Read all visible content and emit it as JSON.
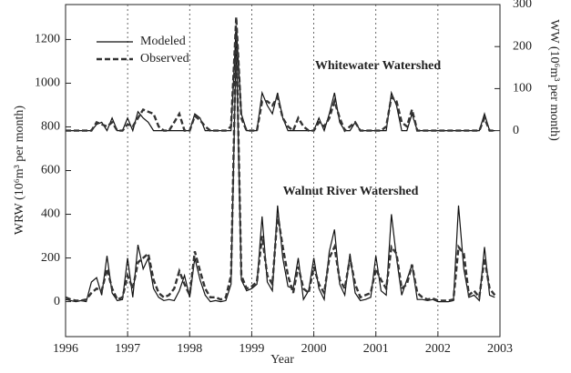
{
  "chart_data": {
    "type": "line",
    "x_label": "Year",
    "y_label": "WRW (10⁶m³ per month)",
    "y2_label": "WW (10⁶m³ per month)",
    "annotations": [
      "Whitewater Watershed",
      "Walnut River Watershed"
    ],
    "x": [
      1996,
      1996.083,
      1996.167,
      1996.25,
      1996.333,
      1996.417,
      1996.5,
      1996.583,
      1996.667,
      1996.75,
      1996.833,
      1996.917,
      1997,
      1997.083,
      1997.167,
      1997.25,
      1997.333,
      1997.417,
      1997.5,
      1997.583,
      1997.667,
      1997.75,
      1997.833,
      1997.917,
      1998,
      1998.083,
      1998.167,
      1998.25,
      1998.333,
      1998.417,
      1998.5,
      1998.583,
      1998.667,
      1998.75,
      1998.833,
      1998.917,
      1999,
      1999.083,
      1999.167,
      1999.25,
      1999.333,
      1999.417,
      1999.5,
      1999.583,
      1999.667,
      1999.75,
      1999.833,
      1999.917,
      2000,
      2000.083,
      2000.167,
      2000.25,
      2000.333,
      2000.417,
      2000.5,
      2000.583,
      2000.667,
      2000.75,
      2000.833,
      2000.917,
      2001,
      2001.083,
      2001.167,
      2001.25,
      2001.333,
      2001.417,
      2001.5,
      2001.583,
      2001.667,
      2001.75,
      2001.833,
      2001.917,
      2002,
      2002.083,
      2002.167,
      2002.25,
      2002.333,
      2002.417,
      2002.5,
      2002.583,
      2002.667,
      2002.75,
      2002.833,
      2002.917
    ],
    "series": [
      {
        "name": "Modeled",
        "color": "#111111",
        "dash": false,
        "values": [
          10,
          5,
          0,
          5,
          0,
          90,
          110,
          30,
          210,
          40,
          5,
          10,
          200,
          20,
          260,
          150,
          200,
          60,
          20,
          5,
          10,
          5,
          50,
          120,
          20,
          200,
          100,
          30,
          0,
          5,
          0,
          5,
          80,
          1190,
          100,
          50,
          60,
          80,
          390,
          90,
          50,
          440,
          200,
          70,
          60,
          200,
          10,
          50,
          200,
          60,
          10,
          230,
          330,
          80,
          30,
          220,
          40,
          5,
          10,
          20,
          210,
          50,
          30,
          400,
          200,
          30,
          100,
          170,
          10,
          10,
          5,
          10,
          0,
          0,
          0,
          5,
          440,
          150,
          20,
          30,
          5,
          250,
          30,
          20
        ]
      },
      {
        "name": "Observed",
        "color": "#333333",
        "dash": true,
        "values": [
          20,
          10,
          5,
          5,
          10,
          40,
          60,
          50,
          150,
          60,
          10,
          20,
          120,
          60,
          180,
          200,
          220,
          100,
          40,
          20,
          30,
          60,
          140,
          80,
          30,
          230,
          140,
          60,
          20,
          20,
          10,
          20,
          120,
          1240,
          120,
          60,
          70,
          90,
          300,
          120,
          80,
          400,
          250,
          120,
          40,
          160,
          60,
          40,
          160,
          80,
          40,
          200,
          250,
          100,
          60,
          200,
          80,
          20,
          30,
          40,
          150,
          100,
          60,
          250,
          220,
          60,
          80,
          170,
          40,
          20,
          10,
          15,
          5,
          5,
          5,
          10,
          250,
          220,
          30,
          50,
          20,
          200,
          60,
          30
        ]
      },
      {
        "name": "Modeled",
        "color": "#111111",
        "dash": false,
        "axis": "y2",
        "values": [
          0,
          0,
          0,
          0,
          0,
          0,
          15,
          20,
          0,
          30,
          0,
          0,
          30,
          0,
          45,
          30,
          20,
          0,
          0,
          0,
          0,
          0,
          0,
          0,
          0,
          40,
          30,
          0,
          0,
          0,
          0,
          0,
          0,
          250,
          40,
          0,
          0,
          0,
          90,
          60,
          40,
          90,
          30,
          0,
          0,
          0,
          0,
          0,
          0,
          30,
          0,
          40,
          90,
          20,
          0,
          0,
          20,
          0,
          0,
          0,
          0,
          0,
          0,
          90,
          60,
          0,
          0,
          40,
          0,
          0,
          0,
          0,
          0,
          0,
          0,
          0,
          0,
          0,
          0,
          0,
          0,
          40,
          0,
          0
        ]
      },
      {
        "name": "Observed",
        "color": "#333333",
        "dash": true,
        "axis": "y2",
        "values": [
          0,
          0,
          0,
          0,
          0,
          0,
          20,
          15,
          10,
          20,
          0,
          0,
          15,
          10,
          30,
          50,
          45,
          40,
          10,
          0,
          0,
          20,
          40,
          0,
          0,
          35,
          25,
          10,
          0,
          0,
          0,
          0,
          10,
          270,
          30,
          0,
          0,
          0,
          70,
          70,
          60,
          80,
          30,
          10,
          0,
          30,
          10,
          0,
          0,
          20,
          10,
          30,
          70,
          30,
          0,
          10,
          20,
          0,
          0,
          0,
          0,
          0,
          10,
          80,
          70,
          20,
          10,
          50,
          0,
          0,
          0,
          0,
          0,
          0,
          0,
          0,
          0,
          0,
          0,
          0,
          0,
          30,
          0,
          0
        ]
      }
    ],
    "xlim": [
      1996,
      2003
    ],
    "xticks": [
      1996,
      1997,
      1998,
      1999,
      2000,
      2001,
      2002,
      2003
    ],
    "ylim": [
      -160,
      1360
    ],
    "yticks": [
      0,
      200,
      400,
      600,
      800,
      1000,
      1200
    ],
    "y2lim": [
      -490,
      300
    ],
    "y2ticks": [
      0,
      100,
      200,
      300
    ],
    "x_grid": true,
    "legend": "upper left"
  }
}
